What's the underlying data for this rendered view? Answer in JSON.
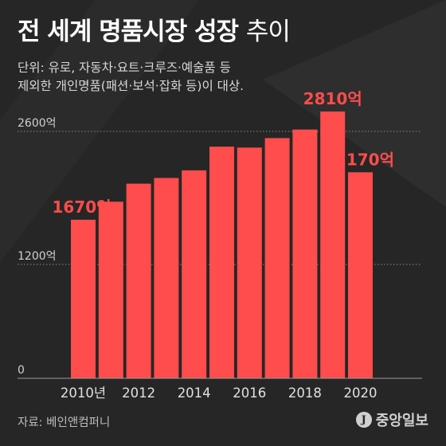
{
  "header": {
    "title_bold": "전 세계 명품시장 성장",
    "title_light": "추이",
    "subtitle_line1": "단위: 유로, 자동차·요트·크루즈·예술품 등",
    "subtitle_line2": "제외한 개인명품(패션·보석·잡화 등)이 대상."
  },
  "footer": {
    "source": "자료: 베인앤컴퍼니",
    "logo_mark": "J",
    "logo_text": "중앙일보"
  },
  "colors": {
    "bar": "#ff4c4c",
    "label": "#ff4c4c",
    "background": "#262626",
    "grid": "#8a8a8a"
  },
  "chart_data": {
    "type": "bar",
    "title": "전 세계 명품시장 성장 추이",
    "years": [
      2010,
      2011,
      2012,
      2013,
      2014,
      2015,
      2016,
      2017,
      2018,
      2019,
      2020
    ],
    "values": [
      1670,
      1860,
      2050,
      2110,
      2190,
      2440,
      2430,
      2530,
      2620,
      2810,
      2170
    ],
    "x_tick_labels": [
      "2010년",
      "2012",
      "2014",
      "2016",
      "2018",
      "2020"
    ],
    "x_tick_years": [
      2010,
      2012,
      2014,
      2016,
      2018,
      2020
    ],
    "y_tick_labels": [
      "0",
      "1200억",
      "2600억"
    ],
    "y_tick_values": [
      0,
      1200,
      2600
    ],
    "data_labels": [
      {
        "year": 2010,
        "text": "1670억"
      },
      {
        "year": 2019,
        "text": "2810억"
      },
      {
        "year": 2020,
        "text": "2170억"
      }
    ],
    "ylim": [
      0,
      2810
    ],
    "grid": true
  }
}
